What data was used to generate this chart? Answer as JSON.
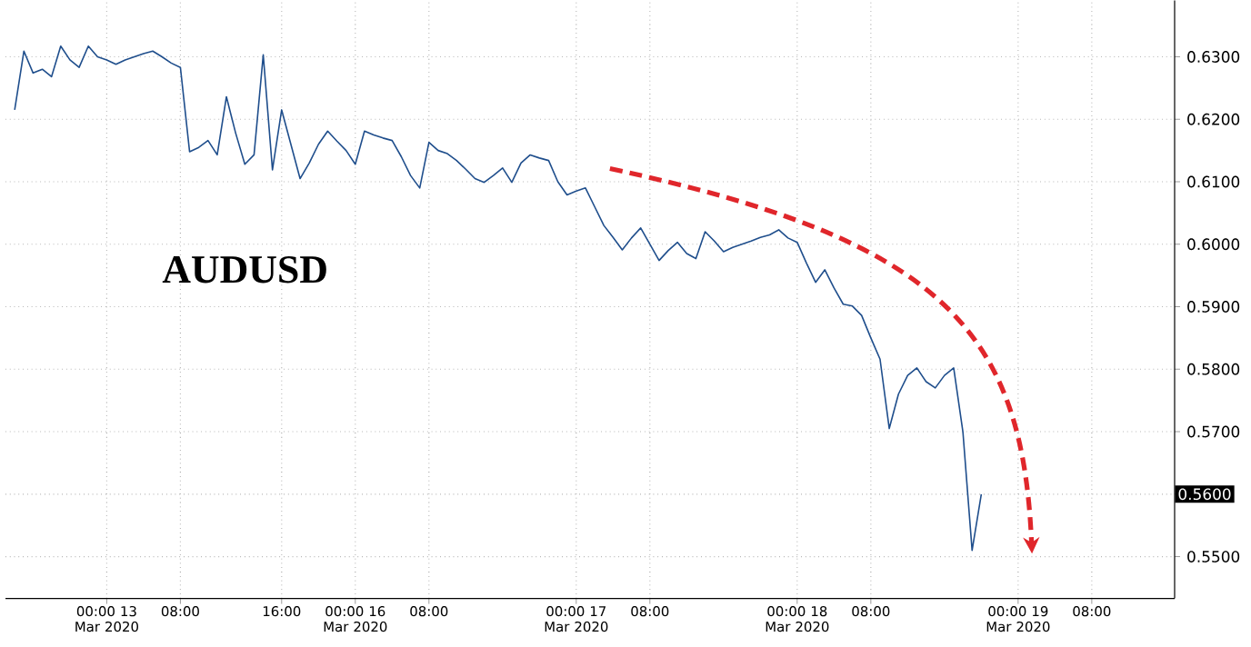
{
  "chart_data": {
    "type": "line",
    "title": "AUDUSD",
    "ylim": [
      0.5433,
      0.639
    ],
    "categories": [
      null,
      null,
      null,
      null,
      null,
      null,
      null,
      null,
      null,
      null,
      null,
      "00:00 13 Mar 2020",
      null,
      null,
      null,
      null,
      null,
      null,
      null,
      "08:00",
      null,
      null,
      null,
      null,
      null,
      null,
      null,
      null,
      null,
      null,
      "16:00",
      null,
      null,
      null,
      null,
      null,
      null,
      null,
      "00:00 16 Mar 2020",
      null,
      null,
      null,
      null,
      null,
      null,
      null,
      "08:00",
      null,
      null,
      null,
      null,
      null,
      null,
      null,
      null,
      null,
      null,
      null,
      null,
      null,
      null,
      null,
      "00:00 17 Mar 2020",
      null,
      null,
      null,
      null,
      null,
      null,
      null,
      "08:00",
      null,
      null,
      null,
      null,
      null,
      null,
      null,
      null,
      null,
      null,
      null,
      null,
      null,
      null,
      null,
      "00:00 18 Mar 2020",
      null,
      null,
      null,
      null,
      null,
      null,
      null,
      "08:00",
      null,
      null,
      null,
      null,
      null,
      null,
      null,
      null,
      null,
      null,
      null,
      null,
      null,
      null,
      null,
      "00:00 19 Mar 2020",
      null,
      null,
      null,
      null,
      null,
      null,
      null,
      "08:00",
      null,
      null,
      null,
      null,
      null,
      null,
      null,
      null,
      null
    ],
    "yticks": [
      {
        "value": 0.55,
        "label": "0.5500"
      },
      {
        "value": 0.56,
        "label": null
      },
      {
        "value": 0.57,
        "label": "0.5700"
      },
      {
        "value": 0.58,
        "label": "0.5800"
      },
      {
        "value": 0.59,
        "label": "0.5900"
      },
      {
        "value": 0.6,
        "label": "0.6000"
      },
      {
        "value": 0.61,
        "label": "0.6100"
      },
      {
        "value": 0.62,
        "label": "0.6200"
      },
      {
        "value": 0.63,
        "label": "0.6300"
      }
    ],
    "grid": true,
    "marker": "none",
    "annotations": [
      "0.5600"
    ],
    "color": "#1f4e8c",
    "values": [
      null,
      0.6215,
      0.6309,
      0.6274,
      0.628,
      0.6268,
      0.6317,
      0.6295,
      0.6283,
      0.6317,
      0.63,
      0.6295,
      0.6288,
      0.6295,
      0.63,
      0.6305,
      0.6309,
      0.63,
      0.629,
      0.6283,
      0.6148,
      0.6155,
      0.6166,
      0.6143,
      0.6236,
      0.6178,
      0.6128,
      0.6143,
      0.6303,
      0.6119,
      0.6215,
      0.616,
      0.6105,
      0.613,
      0.616,
      0.6181,
      0.6165,
      0.615,
      0.6128,
      0.6181,
      0.6175,
      0.617,
      0.6166,
      0.614,
      0.611,
      0.609,
      0.6163,
      0.615,
      0.6145,
      0.6134,
      0.612,
      0.6105,
      0.6099,
      0.611,
      0.6122,
      0.6099,
      0.613,
      0.6143,
      0.6138,
      0.6134,
      0.61,
      0.6079,
      0.6085,
      0.609,
      0.606,
      0.603,
      0.6011,
      0.5991,
      0.601,
      0.6026,
      0.6,
      0.5974,
      0.599,
      0.6003,
      0.5985,
      0.5977,
      0.602,
      0.6005,
      0.5988,
      0.5995,
      0.6,
      0.6005,
      0.6011,
      0.6015,
      0.6023,
      0.601,
      0.6003,
      0.597,
      0.5939,
      0.5959,
      0.593,
      0.5904,
      0.5901,
      0.5886,
      0.585,
      0.5816,
      0.5705,
      0.576,
      0.579,
      0.5802,
      0.578,
      0.577,
      0.579,
      0.5802,
      0.57,
      0.551,
      0.56,
      null,
      null,
      null,
      null,
      null,
      null,
      null,
      null,
      null,
      null,
      null,
      null,
      null,
      null,
      null,
      null,
      null,
      null,
      null,
      null,
      null
    ]
  }
}
